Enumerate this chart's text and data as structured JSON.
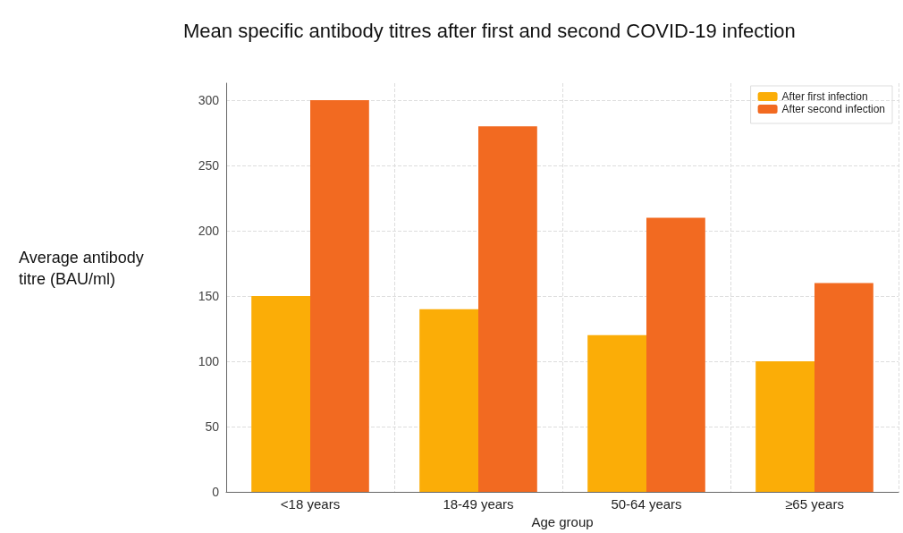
{
  "chart_data": {
    "type": "bar",
    "title": "Mean specific antibody titres after first and second COVID-19 infection",
    "xlabel": "Age group",
    "ylabel": "Average antibody titre (BAU/ml)",
    "categories": [
      "<18 years",
      "18-49 years",
      "50-64 years",
      "≥65 years"
    ],
    "series": [
      {
        "name": "After first infection",
        "color": "#fbad07",
        "values": [
          150,
          140,
          120,
          100
        ]
      },
      {
        "name": "After second infection",
        "color": "#f26a21",
        "values": [
          300,
          280,
          210,
          160
        ]
      }
    ],
    "ylim": [
      0,
      313
    ],
    "yticks": [
      0,
      50,
      100,
      150,
      200,
      250,
      300
    ],
    "grid": true,
    "legend": "top right"
  }
}
